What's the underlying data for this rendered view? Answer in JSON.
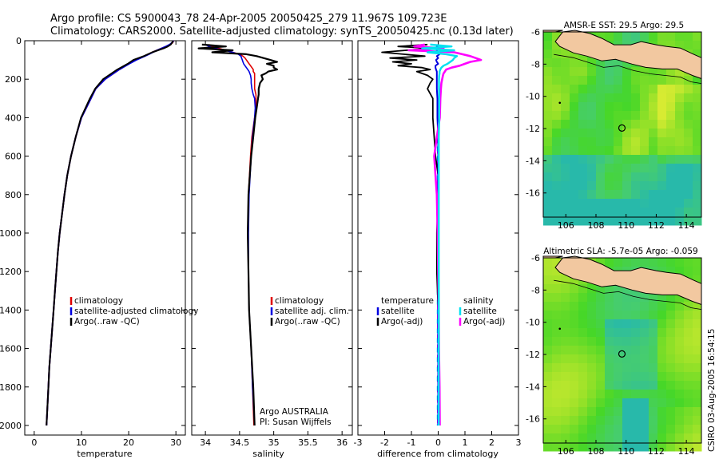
{
  "title": {
    "line1": "Argo profile: CS 5900043_78 24-Apr-2005 20050425_279 11.967S 109.723E",
    "line2": "Climatology: CARS2000. Satellite-adjusted climatology: synTS_20050425.nc (0.13d later)"
  },
  "watermark": "CSIRO 03-Aug-2005 16:54:15",
  "colors": {
    "climatology": "#e00000",
    "satellite": "#0000e0",
    "argo": "#000000",
    "cyan": "#00e0f0",
    "magenta": "#ff00ff",
    "ocean_deep": "#2fbf9f",
    "land": "#f2c8a0"
  },
  "chart_data": [
    {
      "type": "line",
      "id": "temperature",
      "xlabel": "temperature",
      "xlim": [
        -2,
        32
      ],
      "ylim": [
        2050,
        0
      ],
      "xticks": [
        0,
        10,
        20,
        30
      ],
      "yticks": [
        0,
        200,
        400,
        600,
        800,
        1000,
        1200,
        1400,
        1600,
        1800,
        2000
      ],
      "legend": [
        "climatology",
        "satellite-adjusted climatology",
        "Argo(..raw -QC)"
      ],
      "depth": [
        0,
        10,
        20,
        30,
        40,
        50,
        60,
        70,
        80,
        100,
        120,
        150,
        200,
        250,
        300,
        400,
        500,
        600,
        700,
        800,
        900,
        1000,
        1100,
        1200,
        1300,
        1400,
        1500,
        1600,
        1700,
        1800,
        1900,
        2000
      ],
      "series": [
        {
          "name": "climatology",
          "values": [
            29.5,
            29.3,
            28.8,
            28,
            27,
            26,
            25,
            24.2,
            23.3,
            21.5,
            20,
            18,
            15,
            13,
            12,
            10,
            8.8,
            7.8,
            7,
            6.4,
            5.9,
            5.4,
            5,
            4.7,
            4.4,
            4.1,
            3.8,
            3.5,
            3.2,
            3,
            2.8,
            2.6
          ]
        },
        {
          "name": "satellite-adjusted climatology",
          "values": [
            29.5,
            29.2,
            28.7,
            27.9,
            27,
            26,
            25.1,
            24.3,
            23.4,
            21.6,
            20.1,
            18,
            15,
            13,
            12,
            10,
            8.8,
            7.8,
            7,
            6.4,
            5.9,
            5.4,
            5,
            4.7,
            4.4,
            4.1,
            3.8,
            3.5,
            3.2,
            3,
            2.8,
            2.6
          ]
        },
        {
          "name": "Argo(..raw -QC)",
          "values": [
            29.4,
            29.2,
            28.9,
            28.3,
            27.4,
            26.2,
            25,
            24.1,
            23.2,
            21,
            19.8,
            17.6,
            14.6,
            12.9,
            11.8,
            9.9,
            8.8,
            7.8,
            7,
            6.4,
            5.9,
            5.4,
            5,
            4.7,
            4.4,
            4.1,
            3.8,
            3.5,
            3.2,
            3,
            2.8,
            2.6
          ]
        }
      ]
    },
    {
      "type": "line",
      "id": "salinity",
      "xlabel": "salinity",
      "xlim": [
        33.8,
        36.15
      ],
      "ylim": [
        2050,
        0
      ],
      "xticks": [
        34,
        34.5,
        35,
        35.5,
        36
      ],
      "legend": [
        "climatology",
        "satellite adj. clim.",
        "Argo(..raw -QC)"
      ],
      "annotation": [
        "Argo AUSTRALIA",
        "PI: Susan Wijffels"
      ],
      "depth": [
        20,
        30,
        40,
        50,
        60,
        70,
        80,
        90,
        100,
        110,
        120,
        130,
        140,
        150,
        160,
        170,
        180,
        200,
        220,
        250,
        280,
        300,
        350,
        400,
        500,
        600,
        800,
        1000,
        1200,
        1400,
        1600,
        1800,
        2000
      ],
      "series": [
        {
          "name": "climatology",
          "values": [
            34.05,
            34.1,
            34.2,
            34.3,
            34.4,
            34.5,
            34.55,
            34.58,
            34.6,
            34.62,
            34.64,
            34.66,
            34.68,
            34.7,
            34.7,
            34.72,
            34.72,
            34.72,
            34.72,
            34.72,
            34.74,
            34.74,
            34.74,
            34.72,
            34.68,
            34.66,
            34.63,
            34.62,
            34.63,
            34.64,
            34.67,
            34.69,
            34.71
          ]
        },
        {
          "name": "satellite adj. clim.",
          "values": [
            34.0,
            34.05,
            34.15,
            34.28,
            34.4,
            34.48,
            34.52,
            34.53,
            34.54,
            34.55,
            34.56,
            34.58,
            34.6,
            34.62,
            34.64,
            34.65,
            34.66,
            34.67,
            34.67,
            34.68,
            34.7,
            34.72,
            34.73,
            34.72,
            34.69,
            34.67,
            34.64,
            34.63,
            34.63,
            34.64,
            34.67,
            34.69,
            34.72
          ]
        },
        {
          "name": "Argo(..raw -QC)",
          "values": [
            33.95,
            34.3,
            33.9,
            34.4,
            34.1,
            34.6,
            34.75,
            34.85,
            34.95,
            35.05,
            34.9,
            35.0,
            35.0,
            35.05,
            34.92,
            34.88,
            34.82,
            34.84,
            34.8,
            34.78,
            34.78,
            34.77,
            34.75,
            34.73,
            34.7,
            34.67,
            34.63,
            34.62,
            34.63,
            34.64,
            34.67,
            34.7,
            34.72
          ]
        }
      ]
    },
    {
      "type": "line",
      "id": "difference",
      "xlabel": "difference from climatology",
      "xlim": [
        -3,
        3
      ],
      "ylim": [
        2050,
        0
      ],
      "xticks": [
        -3,
        -2,
        -1,
        0,
        1,
        2,
        3
      ],
      "legend_left": [
        "temperature",
        "satellite",
        "Argo(-adj)"
      ],
      "legend_right": [
        "salinity",
        "satellite",
        "Argo(-adj)"
      ],
      "depth": [
        20,
        30,
        40,
        50,
        60,
        70,
        80,
        90,
        100,
        110,
        120,
        130,
        140,
        150,
        160,
        170,
        180,
        200,
        220,
        250,
        300,
        400,
        500,
        600,
        700,
        800,
        1000,
        1200,
        1400,
        1600,
        1800,
        2000
      ],
      "series": [
        {
          "name": "temperature satellite",
          "values": [
            0,
            -0.05,
            0.05,
            -0.05,
            -0.08,
            0.05,
            -0.05,
            0,
            -0.08,
            -0.05,
            0,
            -0.1,
            -0.1,
            -0.08,
            -0.05,
            -0.05,
            -0.05,
            -0.05,
            -0.05,
            -0.05,
            -0.03,
            -0.03,
            0,
            0,
            0,
            0,
            0,
            0,
            0,
            0,
            0,
            0
          ]
        },
        {
          "name": "temperature Argo(-adj)",
          "values": [
            -0.4,
            -1.5,
            -0.3,
            -1.2,
            -2.1,
            -1.3,
            -0.5,
            -1.8,
            -0.8,
            -1.7,
            -1.0,
            -1.5,
            -0.6,
            -0.3,
            -0.8,
            -0.6,
            -0.4,
            -0.2,
            -0.3,
            -0.4,
            -0.2,
            -0.2,
            -0.15,
            -0.1,
            0,
            0,
            -0.05,
            -0.05,
            0,
            0,
            0,
            0
          ]
        },
        {
          "name": "salinity satellite",
          "values": [
            -0.3,
            0.5,
            -0.6,
            0.6,
            -0.4,
            0.3,
            0.7,
            0.6,
            0.55,
            0.45,
            0.35,
            0.2,
            0.12,
            0.08,
            0.05,
            0.05,
            0.04,
            0.03,
            0.03,
            0.03,
            0.04,
            0.04,
            0.02,
            0.02,
            0.02,
            0.02,
            0.02,
            0.02,
            0.02,
            0.02,
            0.02,
            0.02
          ]
        },
        {
          "name": "salinity Argo(-adj)",
          "values": [
            -0.5,
            -0.9,
            0.2,
            -1.1,
            0.6,
            0.9,
            1.2,
            1.4,
            1.6,
            1.2,
            1.0,
            0.8,
            0.5,
            0.3,
            0.25,
            0.2,
            0.18,
            0.15,
            0.12,
            0.1,
            0.08,
            0.06,
            -0.05,
            -0.15,
            -0.1,
            -0.05,
            -0.02,
            0,
            0.02,
            0.03,
            0.05,
            0.06
          ]
        }
      ]
    },
    {
      "type": "heatmap",
      "id": "sst_map",
      "title": "AMSR-E SST: 29.5 Argo: 29.5",
      "xlim": [
        104.5,
        115
      ],
      "ylim": [
        -17.5,
        -6
      ],
      "xticks": [
        106,
        108,
        110,
        112,
        114
      ],
      "yticks": [
        -6,
        -8,
        -10,
        -12,
        -14,
        -16
      ],
      "marker": {
        "lon": 109.723,
        "lat": -11.967
      }
    },
    {
      "type": "heatmap",
      "id": "sla_map",
      "title": "Altimetric SLA: -5.7e-05 Argo: -0.059",
      "xlim": [
        104.5,
        115
      ],
      "ylim": [
        -17.5,
        -6
      ],
      "xticks": [
        106,
        108,
        110,
        112,
        114
      ],
      "yticks": [
        -6,
        -8,
        -10,
        -12,
        -14,
        -16
      ],
      "marker": {
        "lon": 109.723,
        "lat": -11.967
      }
    }
  ]
}
